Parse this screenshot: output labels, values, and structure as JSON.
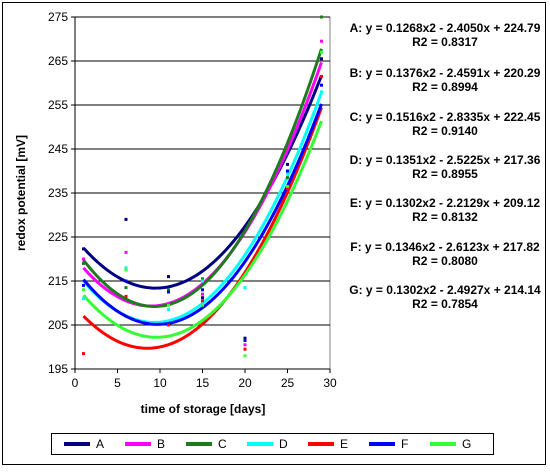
{
  "chart_data": {
    "type": "scatter",
    "xlabel": "time of storage [days]",
    "ylabel": "redox potential [mV]",
    "xlim": [
      0,
      30
    ],
    "ylim": [
      195,
      275
    ],
    "xticks": [
      0,
      5,
      10,
      15,
      20,
      25,
      30
    ],
    "yticks": [
      195,
      205,
      215,
      225,
      235,
      245,
      255,
      265,
      275
    ],
    "grid": "horizontal",
    "legend_position": "bottom",
    "trendline": "polynomial order 2",
    "x": [
      1,
      6,
      11,
      15,
      20,
      25,
      29
    ],
    "series": [
      {
        "name": "A",
        "color": "#000080",
        "values": [
          222.3,
          229,
          216,
          211.2,
          202,
          241.5,
          265.5
        ],
        "equation": "A: y = 0.1268x2 - 2.4050x + 224.79",
        "r2": "R2 = 0.8317",
        "fit": [
          0.1268,
          -2.405,
          224.79
        ]
      },
      {
        "name": "B",
        "color": "#ff00ff",
        "values": [
          220,
          221.5,
          212.5,
          212,
          200.5,
          240,
          269.5
        ],
        "equation": "B: y = 0.1376x2 - 2.4591x + 220.29",
        "r2": "R2 = 0.8994",
        "fit": [
          0.1376,
          -2.4591,
          220.29
        ]
      },
      {
        "name": "C",
        "color": "#1e7b1e",
        "values": [
          219,
          213.5,
          213,
          215.5,
          201.5,
          238.5,
          275
        ],
        "equation": "C: y = 0.1516x2 - 2.8335x + 222.45",
        "r2": "R2 = 0.9140",
        "fit": [
          0.1516,
          -2.8335,
          222.45
        ]
      },
      {
        "name": "D",
        "color": "#00ffff",
        "values": [
          211,
          218,
          208.5,
          215,
          213.5,
          239.5,
          258
        ],
        "equation": "D: y = 0.1351x2 - 2.5225x + 217.36",
        "r2": "R2 = 0.8955",
        "fit": [
          0.1351,
          -2.5225,
          217.36
        ]
      },
      {
        "name": "E",
        "color": "#ff0000",
        "values": [
          198.5,
          211.5,
          205,
          210.5,
          199.5,
          236,
          261.5
        ],
        "equation": "E: y = 0.1302x2 - 2.2129x + 209.12",
        "r2": "R2 = 0.8132",
        "fit": [
          0.1302,
          -2.2129,
          209.12
        ]
      },
      {
        "name": "F",
        "color": "#0000ff",
        "values": [
          214,
          215,
          212.5,
          213,
          201.5,
          240,
          259.5
        ],
        "equation": "F: y = 0.1346x2 - 2.6123x + 217.82",
        "r2": "R2 = 0.8080",
        "fit": [
          0.1346,
          -2.6123,
          217.82
        ]
      },
      {
        "name": "G",
        "color": "#33ff33",
        "values": [
          213,
          217.5,
          209.5,
          209.5,
          198,
          236.5,
          267
        ],
        "equation": "G: y = 0.1302x2 - 2.4927x + 214.14",
        "r2": "R2 = 0.7854",
        "fit": [
          0.1302,
          -2.4927,
          214.14
        ]
      }
    ]
  }
}
